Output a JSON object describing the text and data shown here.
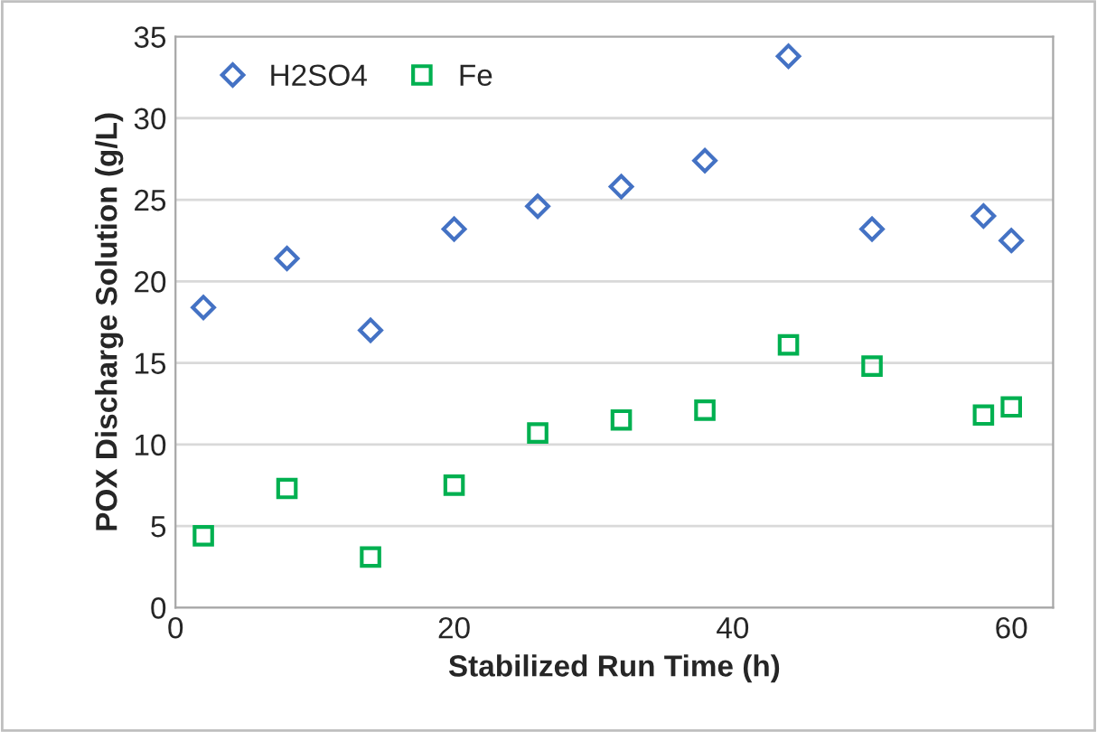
{
  "chart_data": {
    "type": "scatter",
    "xlabel": "Stabilized Run Time (h)",
    "ylabel": "POX Discharge Solution (g/L)",
    "series": [
      {
        "name": "H2SO4",
        "color": "#4472c4",
        "marker": "diamond",
        "x": [
          2,
          8,
          14,
          20,
          26,
          32,
          38,
          44,
          50,
          58,
          60
        ],
        "values": [
          18.4,
          21.4,
          17.0,
          23.2,
          24.6,
          25.8,
          27.4,
          33.8,
          23.2,
          24.0,
          22.5
        ]
      },
      {
        "name": "Fe",
        "color": "#00b050",
        "marker": "square",
        "x": [
          2,
          8,
          14,
          20,
          26,
          32,
          38,
          44,
          50,
          58,
          60
        ],
        "values": [
          4.4,
          7.3,
          3.1,
          7.5,
          10.7,
          11.5,
          12.1,
          16.1,
          14.8,
          11.8,
          12.3
        ]
      }
    ],
    "xlim": [
      0,
      63
    ],
    "xticks": [
      0,
      20,
      40,
      60
    ],
    "ylim": [
      0,
      35
    ],
    "yticks": [
      0,
      5,
      10,
      15,
      20,
      25,
      30,
      35
    ],
    "grid": "y",
    "legend": "top left"
  }
}
